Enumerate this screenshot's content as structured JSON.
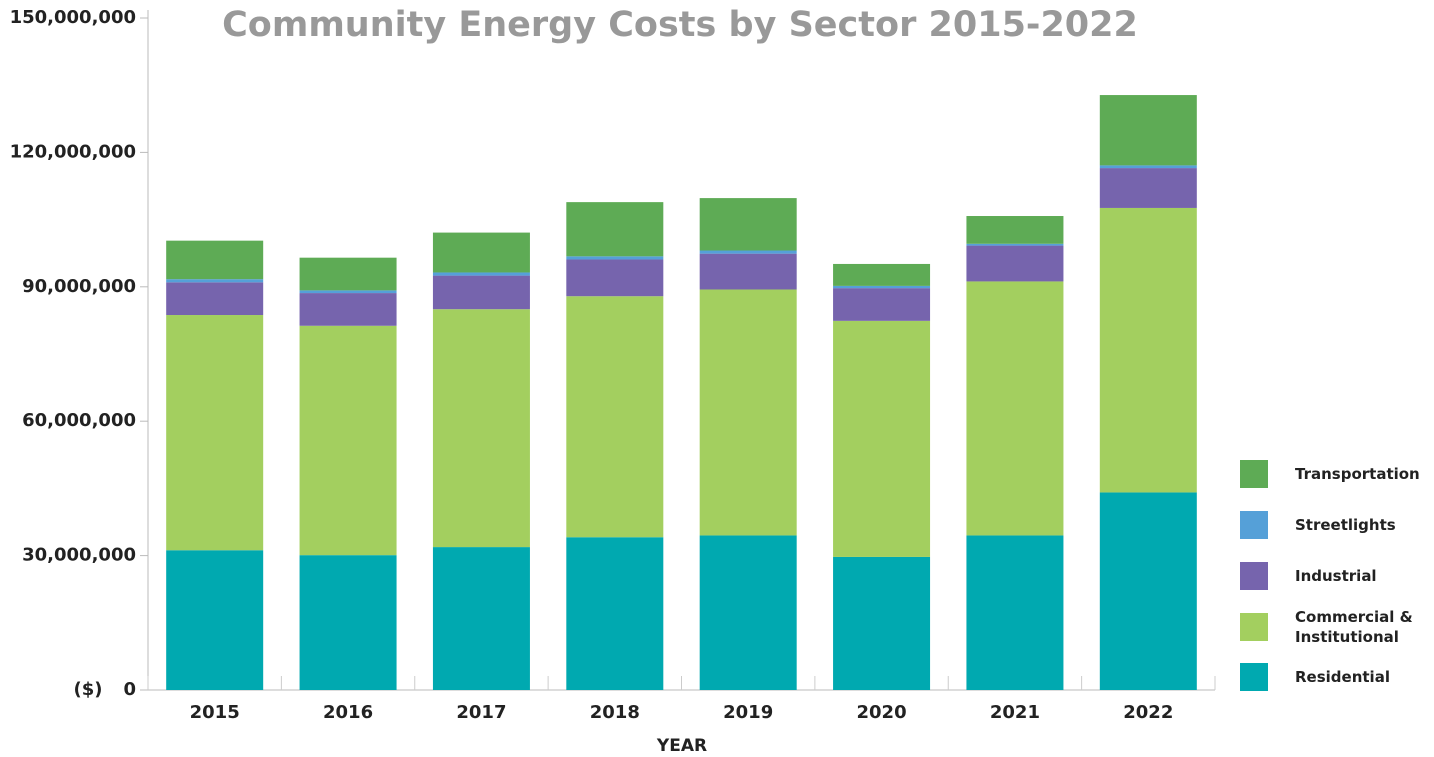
{
  "chart_data": {
    "type": "stacked_bar",
    "title": "Community Energy Costs by Sector 2015-2022",
    "x_label": "YEAR",
    "y_label": "($)",
    "categories": [
      "2015",
      "2016",
      "2017",
      "2018",
      "2019",
      "2020",
      "2021",
      "2022"
    ],
    "series": [
      {
        "name": "Residential",
        "color": "#00a9b0",
        "values": [
          31200000,
          30100000,
          31900000,
          34100000,
          34500000,
          29700000,
          34500000,
          44100000
        ]
      },
      {
        "name": "Commercial & Institutional",
        "color": "#a3cf5f",
        "values": [
          52500000,
          51200000,
          53100000,
          53800000,
          54900000,
          52700000,
          56700000,
          63500000
        ]
      },
      {
        "name": "Industrial",
        "color": "#7664ad",
        "values": [
          7300000,
          7300000,
          7500000,
          8200000,
          8000000,
          7300000,
          8000000,
          8900000
        ]
      },
      {
        "name": "Streetlights",
        "color": "#55a0d8",
        "values": [
          700000,
          600000,
          700000,
          700000,
          700000,
          500000,
          400000,
          600000
        ]
      },
      {
        "name": "Transportation",
        "color": "#5eab55",
        "values": [
          8600000,
          7300000,
          8900000,
          12100000,
          11700000,
          4900000,
          6200000,
          15700000
        ]
      }
    ],
    "ylim": [
      0,
      150000000
    ],
    "yticks": [
      0,
      {
        "value": 30000000,
        "label": "30,000,000"
      },
      {
        "value": 60000000,
        "label": "60,000,000"
      },
      {
        "value": 90000000,
        "label": "90,000,000"
      },
      {
        "value": 120000000,
        "label": "120,000,000"
      },
      {
        "value": 150000000,
        "label": "150,000,000"
      }
    ],
    "legend": "right"
  }
}
